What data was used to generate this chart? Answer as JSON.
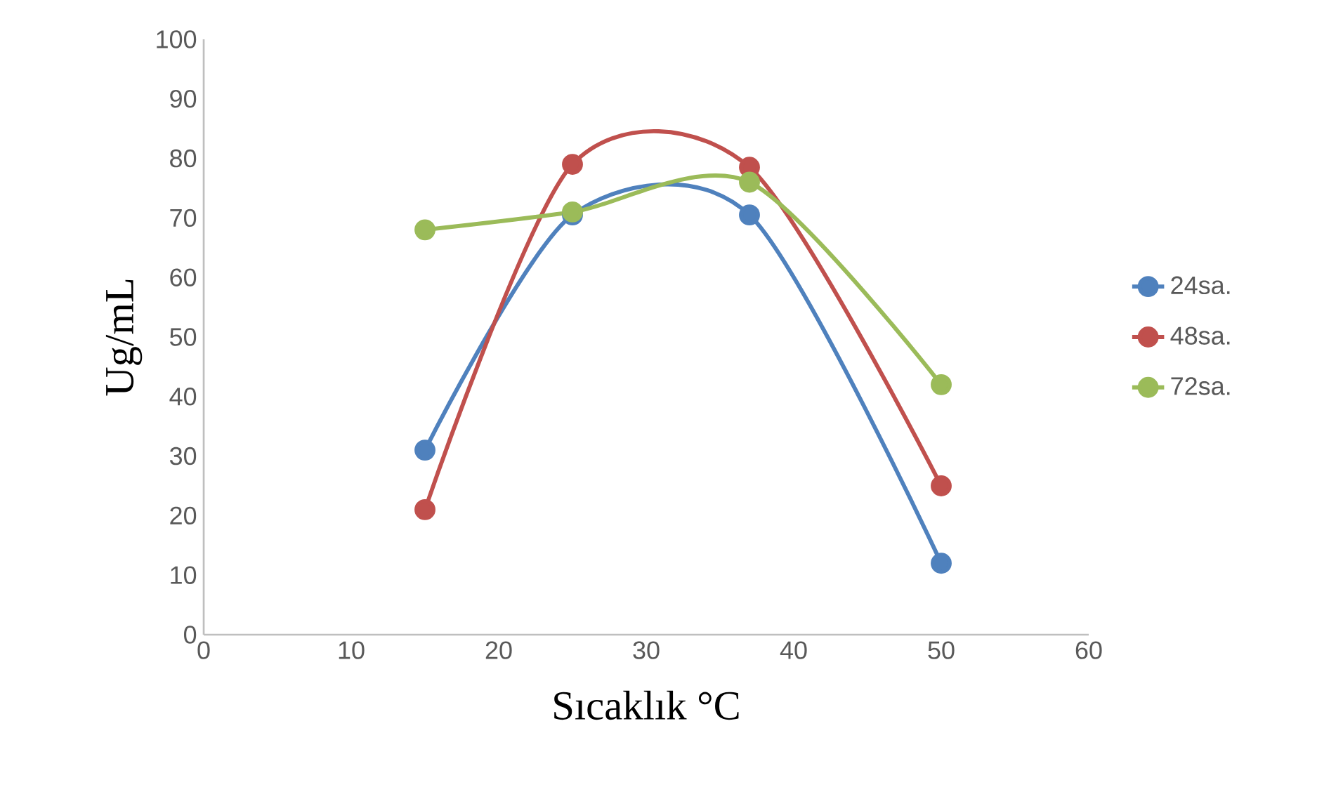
{
  "chart_data": {
    "type": "line",
    "xlabel": "Sıcaklık °C",
    "ylabel": "Ug/mL",
    "x": [
      15,
      25,
      37,
      50
    ],
    "series": [
      {
        "name": "24sa.",
        "color": "#4f81bd",
        "values": [
          31,
          70.5,
          70.5,
          12
        ]
      },
      {
        "name": "48sa.",
        "color": "#c0504d",
        "values": [
          21,
          79,
          78.5,
          25
        ]
      },
      {
        "name": "72sa.",
        "color": "#9bbb59",
        "values": [
          68,
          71,
          76,
          42
        ]
      }
    ],
    "xlim": [
      0,
      60
    ],
    "ylim": [
      0,
      100
    ],
    "xticks": [
      0,
      10,
      20,
      30,
      40,
      50,
      60
    ],
    "yticks": [
      0,
      10,
      20,
      30,
      40,
      50,
      60,
      70,
      80,
      90,
      100
    ],
    "grid": false,
    "legend": "right",
    "marker": "circle",
    "line_style": "solid"
  }
}
